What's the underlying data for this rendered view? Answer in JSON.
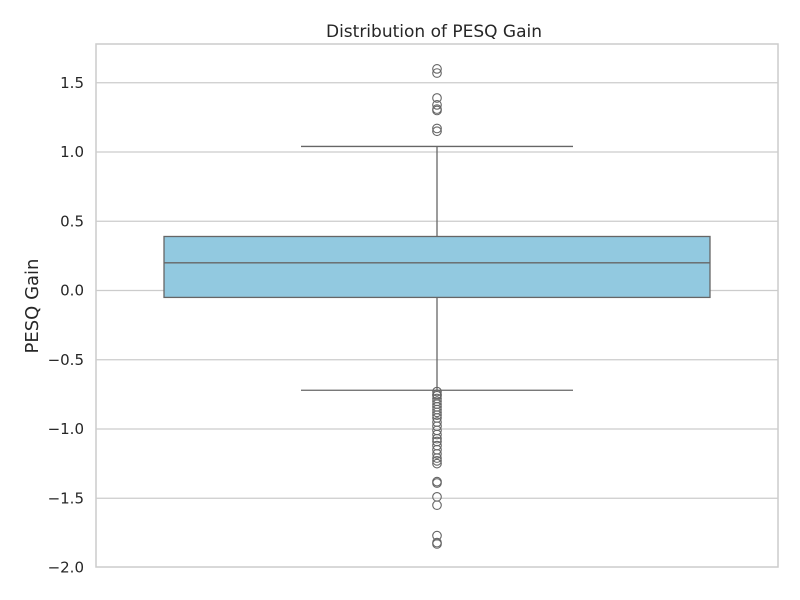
{
  "chart_data": {
    "type": "box",
    "title": "Distribution of PESQ Gain",
    "xlabel": "",
    "ylabel": "PESQ Gain",
    "ylim": [
      -2.0,
      1.78
    ],
    "yticks": [
      1.5,
      1.0,
      0.5,
      0.0,
      -0.5,
      -1.0,
      -1.5,
      -2.0
    ],
    "ytick_labels": [
      "1.5",
      "1.0",
      "0.5",
      "0.0",
      "−0.5",
      "−1.0",
      "−1.5",
      "−2.0"
    ],
    "grid": true,
    "box": {
      "q1": -0.05,
      "median": 0.2,
      "q3": 0.39,
      "whisker_low": -0.72,
      "whisker_high": 1.04,
      "fill_color": "#92C9E0",
      "edge_color": "#666666"
    },
    "outliers": [
      1.6,
      1.57,
      1.39,
      1.34,
      1.31,
      1.3,
      1.17,
      1.15,
      -0.73,
      -0.75,
      -0.76,
      -0.78,
      -0.8,
      -0.82,
      -0.84,
      -0.86,
      -0.88,
      -0.9,
      -0.92,
      -0.95,
      -0.98,
      -1.01,
      -1.04,
      -1.07,
      -1.09,
      -1.12,
      -1.15,
      -1.18,
      -1.21,
      -1.23,
      -1.25,
      -1.38,
      -1.39,
      -1.49,
      -1.55,
      -1.77,
      -1.82,
      -1.83
    ]
  }
}
